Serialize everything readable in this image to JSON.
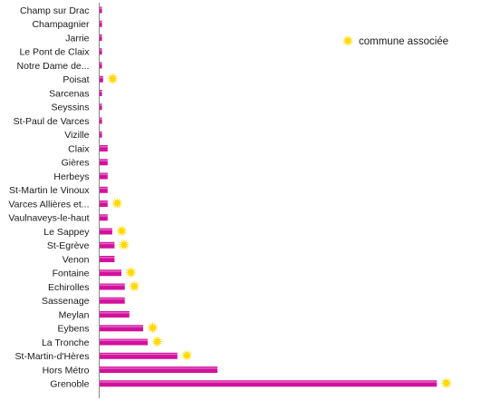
{
  "chart_data": {
    "type": "bar",
    "orientation": "horizontal",
    "categories": [
      "Champ sur Drac",
      "Champagnier",
      "Jarrie",
      "Le Pont de Claix",
      "Notre Dame de...",
      "Poisat",
      "Sarcenas",
      "Seyssins",
      "St-Paul de Varces",
      "Vizille",
      "Claix",
      "Gières",
      "Herbeys",
      "St-Martin le Vinoux",
      "Varces Allières et...",
      "Vaulnaveys-le-haut",
      "Le Sappey",
      "St-Egrève",
      "Venon",
      "Fontaine",
      "Echirolles",
      "Sassenage",
      "Meylan",
      "Eybens",
      "La Tronche",
      "St-Martin-d'Hères",
      "Hors Métro",
      "Grenoble"
    ],
    "values": [
      2,
      2,
      2,
      2,
      2,
      3,
      2,
      2,
      2,
      2,
      7,
      7,
      7,
      7,
      7,
      7,
      11,
      13,
      13,
      19,
      22,
      22,
      26,
      38,
      42,
      68,
      103,
      295
    ],
    "associated": [
      false,
      false,
      false,
      false,
      false,
      true,
      false,
      false,
      false,
      false,
      false,
      false,
      false,
      false,
      true,
      false,
      true,
      true,
      false,
      true,
      true,
      false,
      false,
      true,
      true,
      true,
      false,
      true
    ],
    "xlim": [
      0,
      300
    ],
    "bar_color": "#d3109d",
    "marker_color": "#ffd900",
    "legend": {
      "label": "commune associée",
      "marker": "sun-icon",
      "placement": "top-right"
    },
    "grid": false
  }
}
